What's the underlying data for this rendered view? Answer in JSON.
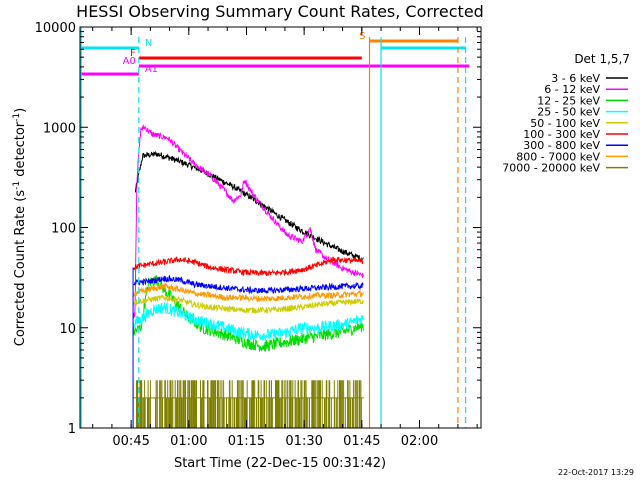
{
  "page": {
    "date_stamp": "22-Oct-2017 13:29"
  },
  "chart_data": {
    "type": "line",
    "title": "HESSI Observing Summary Count Rates, Corrected",
    "xlabel": "Start Time (22-Dec-15 00:31:42)",
    "ylabel_main": "Corrected Count Rate (s",
    "ylabel_sup1": "-1",
    "ylabel_mid": " detector",
    "ylabel_sup2": "-1",
    "ylabel_end": ")",
    "xlim": [
      "00:31:42",
      "02:16:00"
    ],
    "ylim": [
      1,
      10000
    ],
    "yscale": "log",
    "x_ticks": [
      "00:45",
      "01:00",
      "01:15",
      "01:30",
      "01:45",
      "02:00"
    ],
    "y_ticks": [
      "1",
      "10",
      "100",
      "1000",
      "10000"
    ],
    "legend_title": "Det 1,5,7",
    "legend_position": "right",
    "series": [
      {
        "name": "3 - 6 keV",
        "color": "#000000",
        "start": "00:46:00",
        "end": "01:45:30",
        "values": [
          [
            0,
            220
          ],
          [
            2,
            520
          ],
          [
            6,
            540
          ],
          [
            10,
            480
          ],
          [
            14,
            420
          ],
          [
            18,
            360
          ],
          [
            22,
            300
          ],
          [
            26,
            250
          ],
          [
            30,
            200
          ],
          [
            34,
            160
          ],
          [
            38,
            125
          ],
          [
            42,
            100
          ],
          [
            46,
            82
          ],
          [
            50,
            68
          ],
          [
            54,
            58
          ],
          [
            57,
            52
          ],
          [
            59.5,
            48
          ]
        ]
      },
      {
        "name": "6 - 12 keV",
        "color": "#ff00ff",
        "start": "00:45:30",
        "end": "01:45:30",
        "values": [
          [
            0,
            13
          ],
          [
            0.5,
            14
          ],
          [
            1,
            300
          ],
          [
            2,
            950
          ],
          [
            3,
            1000
          ],
          [
            5,
            850
          ],
          [
            9,
            780
          ],
          [
            12,
            600
          ],
          [
            16,
            430
          ],
          [
            20,
            330
          ],
          [
            24,
            230
          ],
          [
            26,
            185
          ],
          [
            28,
            210
          ],
          [
            29,
            300
          ],
          [
            31,
            220
          ],
          [
            35,
            140
          ],
          [
            40,
            85
          ],
          [
            44,
            72
          ],
          [
            46,
            100
          ],
          [
            47.5,
            60
          ],
          [
            50,
            50
          ],
          [
            54,
            40
          ],
          [
            57,
            36
          ],
          [
            60,
            33
          ]
        ]
      },
      {
        "name": "12 - 25 keV",
        "color": "#00dd00",
        "start": "00:45:30",
        "end": "01:45:30",
        "values": [
          [
            0,
            9
          ],
          [
            2,
            10
          ],
          [
            4,
            28
          ],
          [
            6,
            30
          ],
          [
            10,
            20
          ],
          [
            14,
            13
          ],
          [
            18,
            10
          ],
          [
            22,
            9
          ],
          [
            26,
            8
          ],
          [
            30,
            7
          ],
          [
            34,
            6.5
          ],
          [
            38,
            7
          ],
          [
            42,
            7.5
          ],
          [
            46,
            8
          ],
          [
            50,
            8.5
          ],
          [
            54,
            9
          ],
          [
            58,
            10
          ],
          [
            60,
            10.5
          ]
        ]
      },
      {
        "name": "25 - 50 keV",
        "color": "#00ffff",
        "start": "00:45:30",
        "end": "01:45:30",
        "values": [
          [
            0,
            11
          ],
          [
            2,
            12
          ],
          [
            5,
            15
          ],
          [
            8,
            16
          ],
          [
            12,
            14
          ],
          [
            16,
            12
          ],
          [
            20,
            11
          ],
          [
            24,
            10
          ],
          [
            28,
            9
          ],
          [
            32,
            8.5
          ],
          [
            36,
            8.5
          ],
          [
            40,
            9
          ],
          [
            44,
            10
          ],
          [
            48,
            10
          ],
          [
            52,
            10.5
          ],
          [
            56,
            11
          ],
          [
            60,
            12.5
          ]
        ]
      },
      {
        "name": "50 - 100 keV",
        "color": "#cccc00",
        "start": "00:45:30",
        "end": "01:45:30",
        "values": [
          [
            0,
            18
          ],
          [
            4,
            19
          ],
          [
            8,
            20
          ],
          [
            12,
            19
          ],
          [
            16,
            17
          ],
          [
            20,
            16
          ],
          [
            24,
            15.5
          ],
          [
            28,
            15
          ],
          [
            32,
            15
          ],
          [
            36,
            15
          ],
          [
            40,
            15.5
          ],
          [
            44,
            16
          ],
          [
            48,
            17
          ],
          [
            52,
            17.5
          ],
          [
            56,
            18
          ],
          [
            60,
            18.5
          ]
        ]
      },
      {
        "name": "100 - 300 keV",
        "color": "#ff0000",
        "start": "00:45:30",
        "end": "01:45:30",
        "values": [
          [
            0,
            40
          ],
          [
            4,
            43
          ],
          [
            8,
            45
          ],
          [
            12,
            48
          ],
          [
            16,
            45
          ],
          [
            20,
            40
          ],
          [
            24,
            38
          ],
          [
            28,
            36
          ],
          [
            32,
            35
          ],
          [
            36,
            35
          ],
          [
            40,
            36
          ],
          [
            44,
            38
          ],
          [
            48,
            42
          ],
          [
            52,
            48
          ],
          [
            56,
            47
          ],
          [
            60,
            46
          ]
        ]
      },
      {
        "name": "300 - 800 keV",
        "color": "#0000ff",
        "start": "00:45:30",
        "end": "01:45:30",
        "values": [
          [
            0,
            28
          ],
          [
            4,
            29
          ],
          [
            8,
            31
          ],
          [
            12,
            30
          ],
          [
            16,
            27
          ],
          [
            20,
            26
          ],
          [
            24,
            25
          ],
          [
            28,
            24
          ],
          [
            32,
            23.5
          ],
          [
            36,
            23.5
          ],
          [
            40,
            24
          ],
          [
            44,
            24.5
          ],
          [
            48,
            25
          ],
          [
            52,
            25.5
          ],
          [
            56,
            26
          ],
          [
            60,
            26
          ]
        ]
      },
      {
        "name": "800 - 7000 keV",
        "color": "#ff9900",
        "start": "00:45:30",
        "end": "01:45:30",
        "values": [
          [
            0,
            22
          ],
          [
            4,
            24
          ],
          [
            8,
            26
          ],
          [
            12,
            24
          ],
          [
            16,
            22
          ],
          [
            20,
            21
          ],
          [
            24,
            20
          ],
          [
            28,
            20
          ],
          [
            32,
            19.5
          ],
          [
            36,
            19.5
          ],
          [
            40,
            20
          ],
          [
            44,
            20.5
          ],
          [
            48,
            21
          ],
          [
            52,
            21
          ],
          [
            56,
            21.5
          ],
          [
            60,
            22
          ]
        ]
      },
      {
        "name": "7000 - 20000 keV",
        "color": "#808000",
        "start": "00:45:30",
        "end": "01:45:30",
        "values": [
          [
            0,
            2
          ],
          [
            60,
            2
          ]
        ]
      }
    ],
    "flags": [
      {
        "label": "N",
        "color": "#00e5ee",
        "segments": [
          [
            "00:31:42",
            "00:47:00"
          ],
          [
            "01:50:00",
            "02:12:00"
          ]
        ]
      },
      {
        "label": "F",
        "color": "#ff0000",
        "segments": [
          [
            "00:47:00",
            "01:45:00"
          ]
        ]
      },
      {
        "label": "A0",
        "color": "#ff00ff",
        "segments": [
          [
            "00:47:00",
            "02:13:00"
          ]
        ]
      },
      {
        "label": "A1",
        "color": "#ff00ff",
        "segments": [
          [
            "00:31:42",
            "00:47:00"
          ]
        ]
      },
      {
        "label": "S",
        "color": "#ff8000",
        "segments": [
          [
            "01:47:00",
            "02:10:00"
          ]
        ]
      }
    ],
    "vertical_markers": [
      {
        "time": "00:47:00",
        "color": "#00e5ee",
        "style": "dashed"
      },
      {
        "time": "01:47:00",
        "color": "#ff8000",
        "style": "solid"
      },
      {
        "time": "01:50:00",
        "color": "#00e5ee",
        "style": "solid"
      },
      {
        "time": "02:10:00",
        "color": "#ff8000",
        "style": "dashed"
      },
      {
        "time": "02:12:00",
        "color": "#00e5ee",
        "style": "dashed"
      }
    ]
  }
}
